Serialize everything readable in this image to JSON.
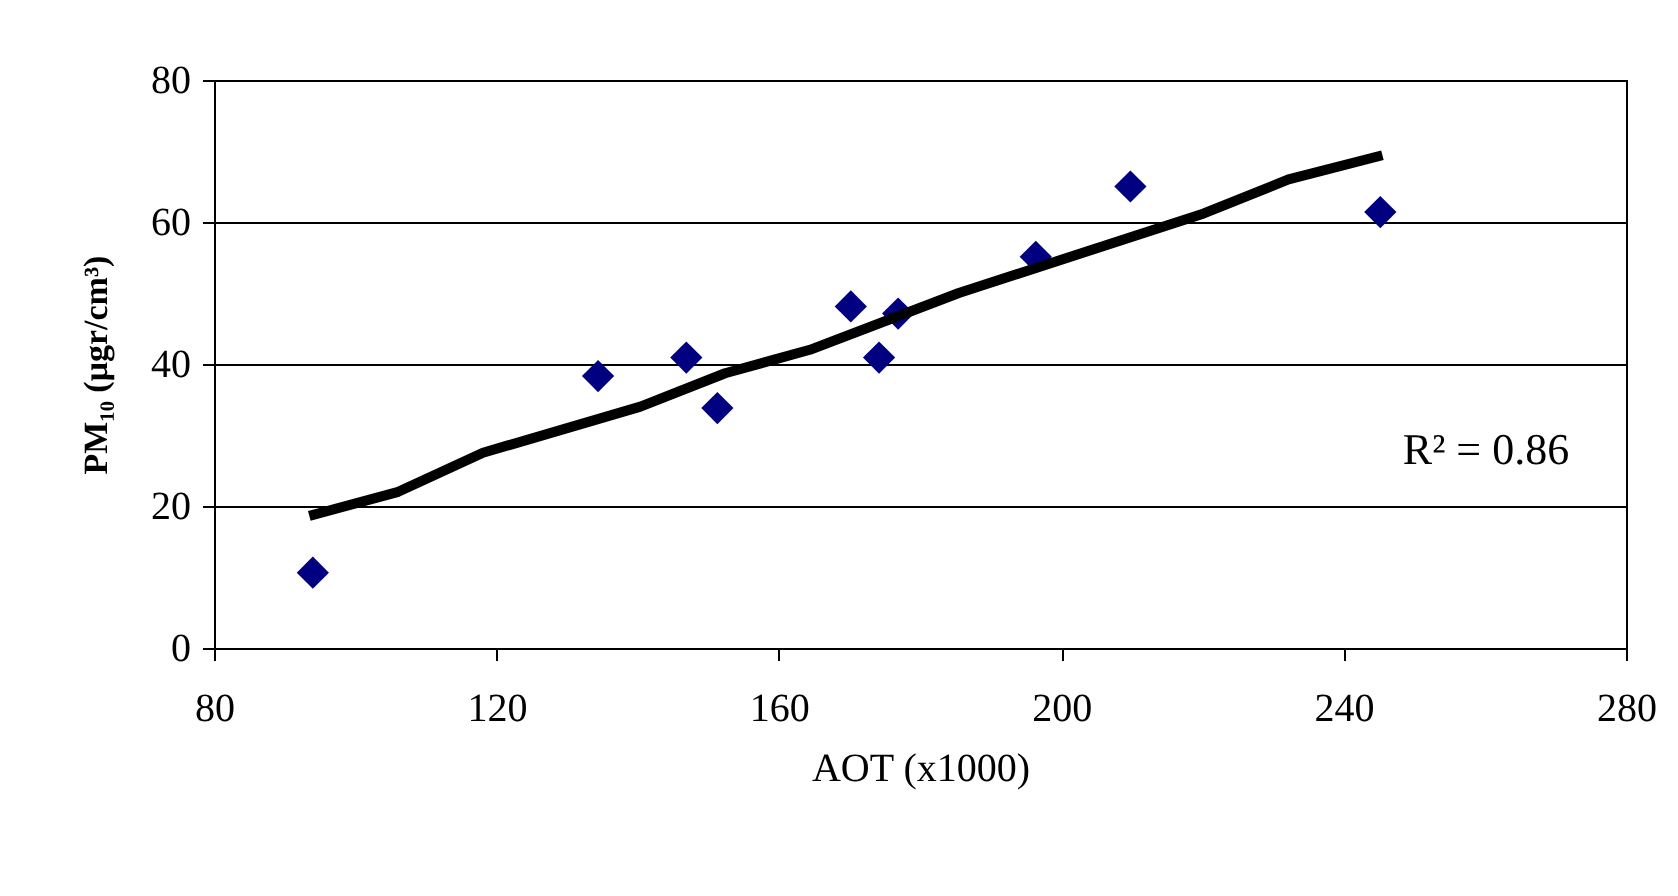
{
  "chart_data": {
    "type": "scatter",
    "xlabel": "AOT (x1000)",
    "ylabel": "PM₁₀ (μgr/cm³)",
    "annotations": [
      "R² = 0.86"
    ],
    "series": [
      {
        "color": "#000080",
        "marker": "diamond",
        "x": [
          94.0,
          134.4,
          146.9,
          151.3,
          170.2,
          174.2,
          176.9,
          196.4,
          209.8,
          245.2
        ],
        "values": [
          10.6,
          38.3,
          40.9,
          33.8,
          48.1,
          40.9,
          47.1,
          55.1,
          65.0,
          61.4
        ]
      },
      {
        "type": "line",
        "color": "#000000",
        "marker": "none",
        "x": [
          93.5,
          106.1,
          118.1,
          140.4,
          152.4,
          164.4,
          185.5,
          220.2,
          232.2,
          245.5
        ],
        "values": [
          18.6,
          22.0,
          27.5,
          34.0,
          38.7,
          42.0,
          50.0,
          61.2,
          66.0,
          69.4
        ]
      }
    ],
    "xlim": [
      80,
      280
    ],
    "xticks": [
      80,
      120,
      160,
      200,
      240,
      280
    ],
    "ylim": [
      0,
      80
    ],
    "yticks": [
      0,
      20,
      40,
      60,
      80
    ],
    "grid": "y"
  }
}
